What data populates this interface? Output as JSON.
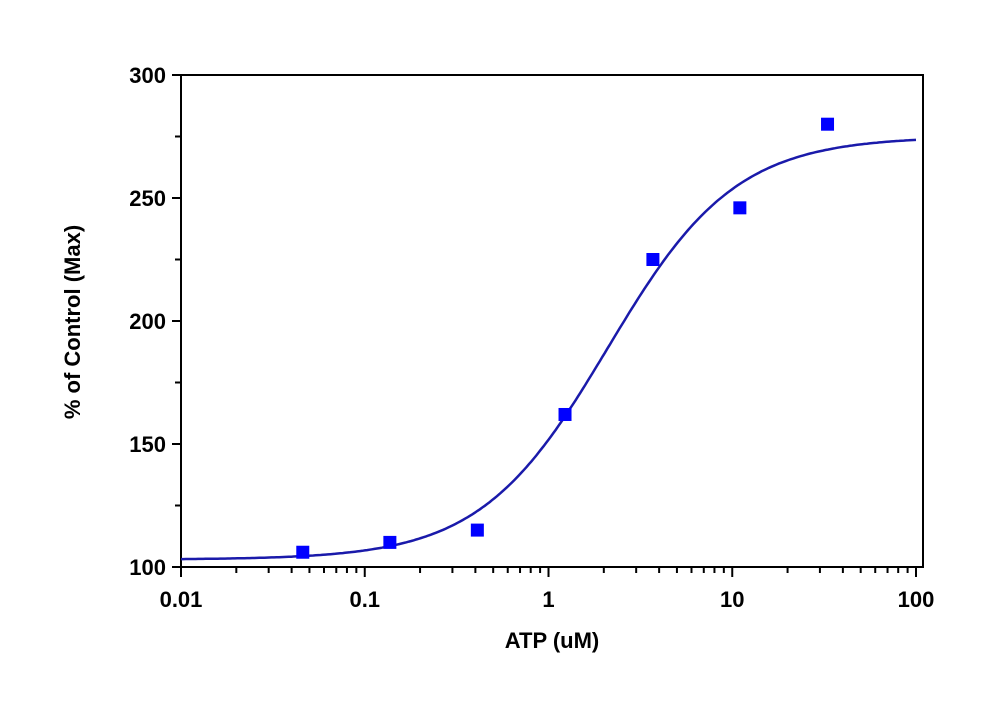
{
  "chart_data": {
    "type": "scatter",
    "title": "",
    "xlabel": "ATP (uM)",
    "ylabel": "% of Control (Max)",
    "xscale": "log",
    "xlim": [
      0.01,
      100
    ],
    "ylim": [
      100,
      300
    ],
    "x_ticks": [
      "0.01",
      "0.1",
      "1",
      "10",
      "100"
    ],
    "y_ticks": [
      "100",
      "150",
      "200",
      "250",
      "300"
    ],
    "grid": false,
    "legend": null,
    "series": [
      {
        "name": "data",
        "type": "scatter",
        "marker": "square",
        "color": "#0000ff",
        "x": [
          0.046,
          0.137,
          0.41,
          1.23,
          3.7,
          11.0,
          33.0
        ],
        "y": [
          106,
          110,
          115,
          162,
          225,
          246,
          280
        ]
      },
      {
        "name": "fit",
        "type": "line",
        "color": "#1a1aaa",
        "model": "sigmoidal dose-response",
        "params": {
          "bottom": 103,
          "top": 275,
          "ec50": 2.1,
          "hill": 1.25
        }
      }
    ]
  }
}
